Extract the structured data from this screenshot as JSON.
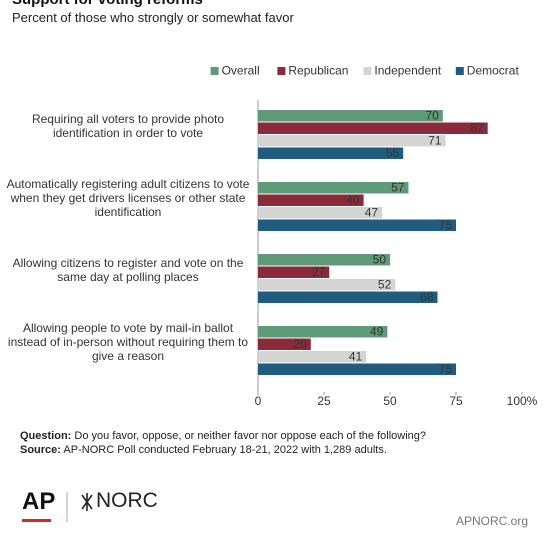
{
  "chart_data": {
    "type": "bar",
    "orientation": "horizontal",
    "title": "Support for voting reforms",
    "subtitle": "Percent of those who strongly or somewhat favor",
    "categories": [
      "Requiring all voters to provide photo identification in order to vote",
      "Automatically registering adult citizens to vote when they get drivers licenses or other state identification",
      "Allowing citizens to register and vote on the same day at polling places",
      "Allowing people to vote by mail-in ballot instead of in-person without requiring them to give a reason"
    ],
    "series": [
      {
        "name": "Overall",
        "color": "#5f9b78",
        "values": [
          70,
          57,
          50,
          49
        ]
      },
      {
        "name": "Republican",
        "color": "#8a2b3b",
        "values": [
          87,
          40,
          27,
          20
        ]
      },
      {
        "name": "Independent",
        "color": "#d4d4d4",
        "values": [
          71,
          47,
          52,
          41
        ]
      },
      {
        "name": "Democrat",
        "color": "#1f5c80",
        "values": [
          55,
          75,
          68,
          75
        ]
      }
    ],
    "xlim": [
      0,
      100
    ],
    "xticks": [
      0,
      25,
      50,
      75,
      {
        "value": 100,
        "label": "100%"
      }
    ],
    "grid": false,
    "legend": "top-right",
    "question_label": "Question:",
    "question": "Do you favor, oppose, or neither favor nor oppose each of the following?",
    "source_label": "Source:",
    "source": "AP-NORC Poll conducted February 18-21, 2022 with 1,289 adults.",
    "logo_ap": "AP",
    "logo_norc": "NORC",
    "site": "APNORC.org"
  }
}
